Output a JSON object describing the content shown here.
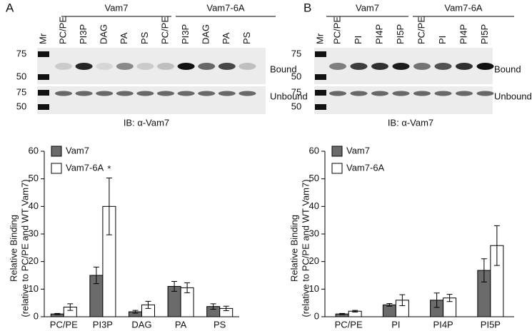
{
  "chart_data": [
    {
      "type": "bar",
      "ylabel": [
        "Relative Binding",
        "(relative to PC/PE and WT Vam7)"
      ],
      "categories": [
        "PC/PE",
        "PI3P",
        "DAG",
        "PA",
        "PS"
      ],
      "series": [
        {
          "name": "Vam7",
          "color": "#6b6b6b",
          "values": [
            1,
            15,
            1.8,
            11,
            3.7
          ],
          "errors": [
            0.2,
            3,
            0.5,
            1.8,
            1
          ]
        },
        {
          "name": "Vam7-6A",
          "color": "#ffffff",
          "values": [
            3.5,
            40,
            4.3,
            10.5,
            3
          ],
          "errors": [
            1.2,
            10.3,
            1.3,
            1.8,
            0.8
          ]
        }
      ],
      "annotation": "*",
      "ylim": [
        0,
        60
      ],
      "yticks": [
        0,
        10,
        20,
        30,
        40,
        50,
        60
      ]
    },
    {
      "type": "bar",
      "ylabel": [
        "Relative Binding",
        "(relative to PC/PE and WT Vam7)"
      ],
      "categories": [
        "PC/PE",
        "PI",
        "PI4P",
        "PI5P"
      ],
      "series": [
        {
          "name": "Vam7",
          "color": "#6b6b6b",
          "values": [
            1,
            4.3,
            6,
            16.8
          ],
          "errors": [
            0.2,
            0.5,
            2.6,
            4.2
          ]
        },
        {
          "name": "Vam7-6A",
          "color": "#ffffff",
          "values": [
            2,
            6,
            6.8,
            25.8
          ],
          "errors": [
            0.3,
            2,
            1.3,
            7.2
          ]
        }
      ],
      "ylim": [
        0,
        60
      ],
      "yticks": [
        0,
        10,
        20,
        30,
        40,
        50,
        60
      ]
    }
  ],
  "blots": [
    {
      "letter": "A",
      "groups": [
        "Vam7",
        "Vam7-6A"
      ],
      "marker_label": "Mr",
      "lanes": [
        "PC/PE",
        "PI3P",
        "DAG",
        "PA",
        "PS",
        "PC/PE",
        "PI3P",
        "DAG",
        "PA",
        "PS"
      ],
      "markers": [
        75,
        50
      ],
      "bound": "Bound",
      "unbound": "Unbound",
      "ib": "IB: α-Vam7"
    },
    {
      "letter": "B",
      "groups": [
        "Vam7",
        "Vam7-6A"
      ],
      "marker_label": "Mr",
      "lanes": [
        "PC/PE",
        "PI",
        "PI4P",
        "PI5P",
        "PC/PE",
        "PI",
        "PI4P",
        "PI5P"
      ],
      "markers": [
        75,
        50
      ],
      "bound": "Bound",
      "unbound": "Unbound",
      "ib": "IB: α-Vam7"
    }
  ]
}
